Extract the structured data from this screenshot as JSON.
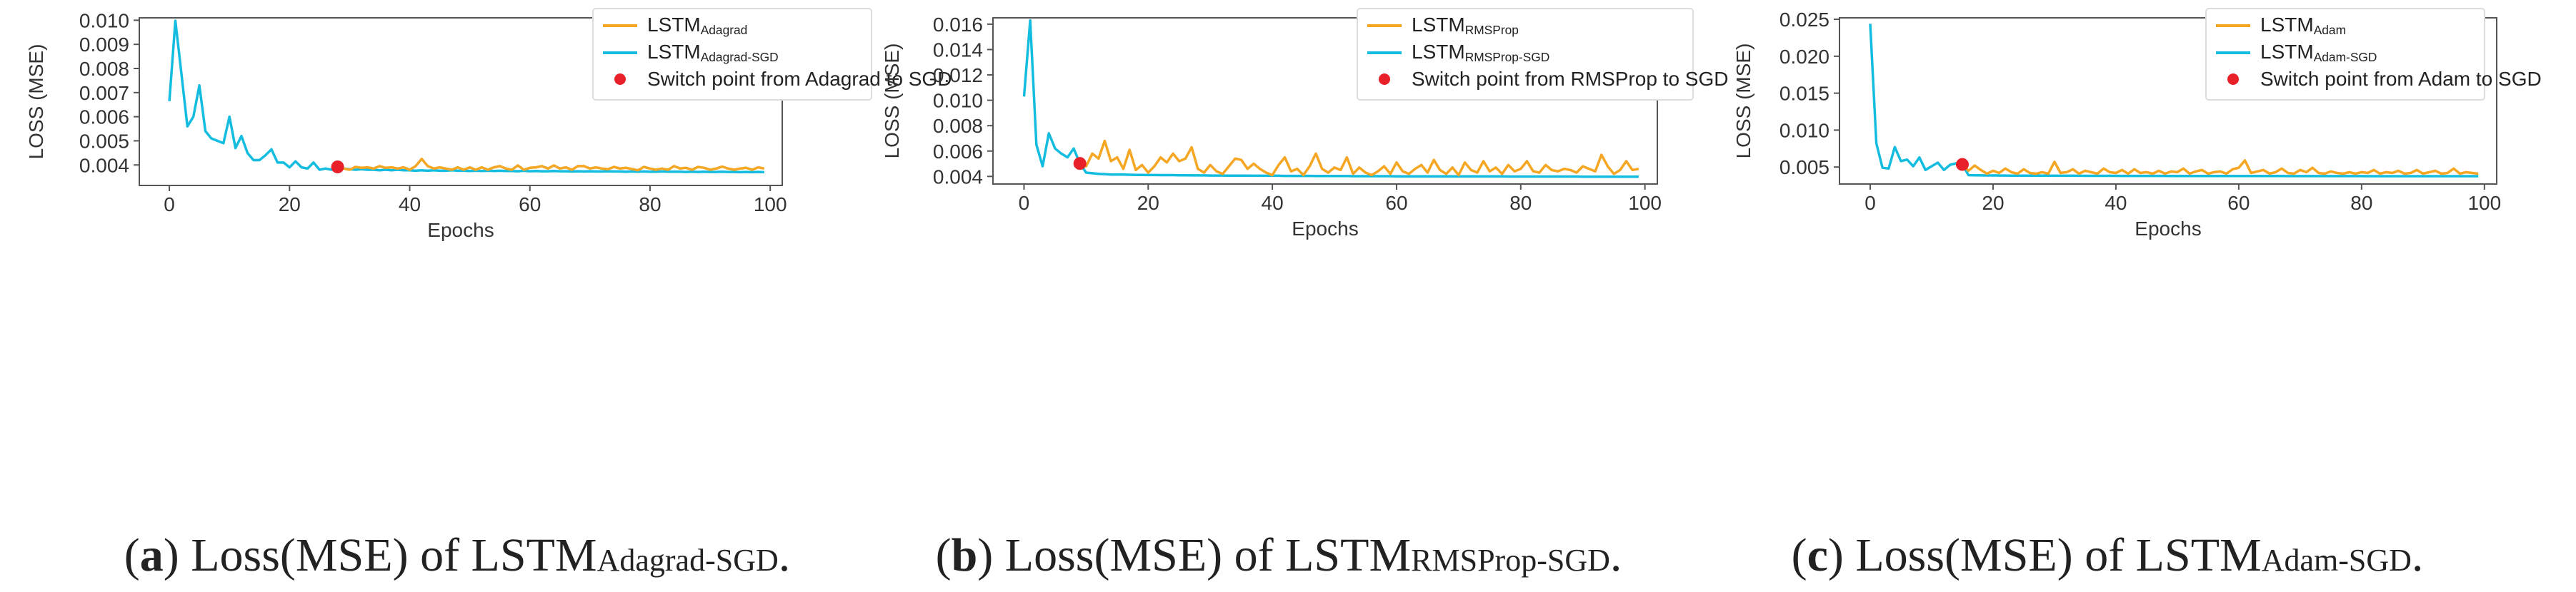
{
  "colors": {
    "orange": "#f5a623",
    "blue": "#14bde0",
    "switch": "#e8202a",
    "axis": "#555555",
    "text": "#333333"
  },
  "panels": [
    {
      "caption": {
        "letter": "a",
        "open": "(",
        "close": ")",
        "prefix": " Loss(MSE) of LSTM",
        "sub": "Adagrad-SGD",
        "end": "."
      },
      "chart_data": {
        "type": "line",
        "xlabel": "Epochs",
        "ylabel": "LOSS (MSE)",
        "xlim": [
          -5,
          102
        ],
        "ylim": [
          0.00315,
          0.0101
        ],
        "xticks": [
          0,
          20,
          40,
          60,
          80,
          100
        ],
        "xtick_labels": [
          "0",
          "20",
          "40",
          "60",
          "80",
          "100"
        ],
        "yticks": [
          0.004,
          0.005,
          0.006,
          0.007,
          0.008,
          0.009,
          0.01
        ],
        "ytick_labels": [
          "0.004",
          "0.005",
          "0.006",
          "0.007",
          "0.008",
          "0.009",
          "0.010"
        ],
        "legend": {
          "position": "top-right",
          "series_labels": [
            {
              "base": "LSTM",
              "sub": "Adagrad"
            },
            {
              "base": "LSTM",
              "sub": "Adagrad-SGD"
            }
          ],
          "switch_label": "Switch point from Adagrad to SGD"
        },
        "switch_point": {
          "x": 28,
          "y": 0.00392
        },
        "series": [
          {
            "name": "LSTM Adagrad",
            "color": "orange",
            "x_start": 28,
            "values": [
              0.00392,
              0.00385,
              0.0038,
              0.00392,
              0.00388,
              0.0039,
              0.00385,
              0.00395,
              0.00388,
              0.0039,
              0.00385,
              0.0039,
              0.0038,
              0.00395,
              0.00425,
              0.00395,
              0.00385,
              0.0039,
              0.00385,
              0.0038,
              0.0039,
              0.0038,
              0.0039,
              0.0038,
              0.0039,
              0.0038,
              0.0039,
              0.00395,
              0.00385,
              0.0038,
              0.00398,
              0.0038,
              0.00388,
              0.0039,
              0.00395,
              0.00385,
              0.00398,
              0.00385,
              0.0039,
              0.0038,
              0.00395,
              0.00395,
              0.00385,
              0.0039,
              0.00385,
              0.00382,
              0.00392,
              0.00385,
              0.00388,
              0.00383,
              0.00378,
              0.00392,
              0.00385,
              0.0038,
              0.00385,
              0.0038,
              0.00395,
              0.00385,
              0.00388,
              0.0038,
              0.00392,
              0.00388,
              0.0038,
              0.00385,
              0.00393,
              0.00385,
              0.0038,
              0.00385,
              0.00388,
              0.0038,
              0.0039,
              0.00385
            ]
          },
          {
            "name": "LSTM Adagrad-SGD",
            "color": "blue",
            "x_start": 0,
            "values": [
              0.00665,
              0.00998,
              0.0078,
              0.0056,
              0.006,
              0.0073,
              0.0054,
              0.0051,
              0.005,
              0.0049,
              0.006,
              0.0047,
              0.0052,
              0.0045,
              0.0042,
              0.0042,
              0.0044,
              0.00465,
              0.0041,
              0.0041,
              0.0039,
              0.00415,
              0.0039,
              0.00385,
              0.0041,
              0.0038,
              0.00385,
              0.0038,
              0.00392,
              0.00385,
              0.00382,
              0.0038,
              0.00382,
              0.0038,
              0.0038,
              0.00378,
              0.0038,
              0.00378,
              0.0038,
              0.00378,
              0.00378,
              0.00376,
              0.00378,
              0.00376,
              0.00378,
              0.00376,
              0.00376,
              0.00378,
              0.00376,
              0.00376,
              0.00375,
              0.00376,
              0.00375,
              0.00376,
              0.00375,
              0.00376,
              0.00375,
              0.00375,
              0.00374,
              0.00376,
              0.00374,
              0.00375,
              0.00374,
              0.00374,
              0.00375,
              0.00374,
              0.00374,
              0.00373,
              0.00374,
              0.00373,
              0.00374,
              0.00373,
              0.00373,
              0.00374,
              0.00373,
              0.00373,
              0.00372,
              0.00373,
              0.00372,
              0.00373,
              0.00372,
              0.00372,
              0.00373,
              0.00372,
              0.00372,
              0.00372,
              0.00371,
              0.00372,
              0.00371,
              0.00372,
              0.00371,
              0.00371,
              0.00372,
              0.00371,
              0.00371,
              0.0037,
              0.00371,
              0.0037,
              0.00371,
              0.0037
            ]
          }
        ]
      }
    },
    {
      "caption": {
        "letter": "b",
        "open": "(",
        "close": ")",
        "prefix": " Loss(MSE) of LSTM",
        "sub": "RMSProp-SGD",
        "end": "."
      },
      "chart_data": {
        "type": "line",
        "xlabel": "Epochs",
        "ylabel": "LOSS (MSE)",
        "xlim": [
          -5,
          102
        ],
        "ylim": [
          0.0034,
          0.0165
        ],
        "xticks": [
          0,
          20,
          40,
          60,
          80,
          100
        ],
        "xtick_labels": [
          "0",
          "20",
          "40",
          "60",
          "80",
          "100"
        ],
        "yticks": [
          0.004,
          0.006,
          0.008,
          0.01,
          0.012,
          0.014,
          0.016
        ],
        "ytick_labels": [
          "0.004",
          "0.006",
          "0.008",
          "0.010",
          "0.012",
          "0.014",
          "0.016"
        ],
        "legend": {
          "position": "top-right",
          "series_labels": [
            {
              "base": "LSTM",
              "sub": "RMSProp"
            },
            {
              "base": "LSTM",
              "sub": "RMSProp-SGD"
            }
          ],
          "switch_label": "Switch point from RMSProp to SGD"
        },
        "switch_point": {
          "x": 9,
          "y": 0.00502
        },
        "series": [
          {
            "name": "LSTM RMSProp",
            "color": "orange",
            "x_start": 9,
            "values": [
              0.00502,
              0.0048,
              0.0058,
              0.0054,
              0.0068,
              0.0052,
              0.0055,
              0.0046,
              0.0061,
              0.0045,
              0.0049,
              0.0043,
              0.0048,
              0.0055,
              0.0051,
              0.0058,
              0.0052,
              0.0054,
              0.0063,
              0.0046,
              0.0043,
              0.0049,
              0.0044,
              0.0042,
              0.0048,
              0.0054,
              0.0053,
              0.0046,
              0.005,
              0.0046,
              0.0043,
              0.0041,
              0.0049,
              0.0055,
              0.0044,
              0.0046,
              0.0041,
              0.0048,
              0.0058,
              0.0046,
              0.0043,
              0.0047,
              0.0045,
              0.0055,
              0.0042,
              0.0047,
              0.0043,
              0.0041,
              0.0044,
              0.0048,
              0.0042,
              0.0051,
              0.0044,
              0.0042,
              0.0046,
              0.0049,
              0.0043,
              0.0053,
              0.0045,
              0.0042,
              0.0047,
              0.0041,
              0.0051,
              0.0045,
              0.0043,
              0.0052,
              0.0044,
              0.0047,
              0.0042,
              0.0049,
              0.0044,
              0.0046,
              0.0052,
              0.0044,
              0.0043,
              0.0049,
              0.0045,
              0.0044,
              0.0046,
              0.0045,
              0.0043,
              0.0048,
              0.0046,
              0.0044,
              0.0057,
              0.0048,
              0.0042,
              0.0045,
              0.0052,
              0.0045,
              0.0046
            ]
          },
          {
            "name": "LSTM RMSProp-SGD",
            "color": "blue",
            "x_start": 0,
            "values": [
              0.0103,
              0.0163,
              0.0065,
              0.0048,
              0.0074,
              0.0062,
              0.0058,
              0.0055,
              0.0062,
              0.00502,
              0.0043,
              0.00425,
              0.0042,
              0.00418,
              0.00415,
              0.00415,
              0.00414,
              0.00413,
              0.00412,
              0.00412,
              0.00411,
              0.00411,
              0.0041,
              0.0041,
              0.0041,
              0.00409,
              0.00409,
              0.00408,
              0.00408,
              0.00408,
              0.00407,
              0.00407,
              0.00407,
              0.00406,
              0.00406,
              0.00406,
              0.00406,
              0.00405,
              0.00405,
              0.00405,
              0.00405,
              0.00405,
              0.00404,
              0.00404,
              0.00404,
              0.00404,
              0.00404,
              0.00403,
              0.00403,
              0.00403,
              0.00403,
              0.00403,
              0.00403,
              0.00402,
              0.00402,
              0.00402,
              0.00402,
              0.00402,
              0.00402,
              0.00402,
              0.00401,
              0.00401,
              0.00401,
              0.00401,
              0.00401,
              0.00401,
              0.00401,
              0.00401,
              0.004,
              0.004,
              0.004,
              0.004,
              0.004,
              0.004,
              0.004,
              0.004,
              0.004,
              0.004,
              0.00399,
              0.00399,
              0.00399,
              0.00399,
              0.00399,
              0.00399,
              0.00399,
              0.00399,
              0.00399,
              0.00399,
              0.00399,
              0.00399,
              0.00398,
              0.00398,
              0.00398,
              0.00398,
              0.00398,
              0.00398,
              0.00398,
              0.00398,
              0.00398,
              0.00398
            ]
          }
        ]
      }
    },
    {
      "caption": {
        "letter": "c",
        "open": "(",
        "close": ")",
        "prefix": " Loss(MSE) of LSTM",
        "sub": "Adam-SGD",
        "end": "."
      },
      "chart_data": {
        "type": "line",
        "xlabel": "Epochs",
        "ylabel": "LOSS (MSE)",
        "xlim": [
          -5,
          102
        ],
        "ylim": [
          0.0027,
          0.0252
        ],
        "xticks": [
          0,
          20,
          40,
          60,
          80,
          100
        ],
        "xtick_labels": [
          "0",
          "20",
          "40",
          "60",
          "80",
          "100"
        ],
        "yticks": [
          0.005,
          0.01,
          0.015,
          0.02,
          0.025
        ],
        "ytick_labels": [
          "0.005",
          "0.010",
          "0.015",
          "0.020",
          "0.025"
        ],
        "legend": {
          "position": "top-right",
          "series_labels": [
            {
              "base": "LSTM",
              "sub": "Adam"
            },
            {
              "base": "LSTM",
              "sub": "Adam-SGD"
            }
          ],
          "switch_label": "Switch point from Adam to SGD"
        },
        "switch_point": {
          "x": 15,
          "y": 0.00535
        },
        "series": [
          {
            "name": "LSTM Adam",
            "color": "orange",
            "x_start": 15,
            "values": [
              0.00535,
              0.0045,
              0.0052,
              0.0046,
              0.0041,
              0.0045,
              0.0042,
              0.0048,
              0.0043,
              0.0041,
              0.0047,
              0.0042,
              0.0041,
              0.0043,
              0.0041,
              0.0057,
              0.0042,
              0.0043,
              0.0047,
              0.0041,
              0.0045,
              0.0043,
              0.0041,
              0.0048,
              0.0043,
              0.0042,
              0.0046,
              0.0041,
              0.0047,
              0.0042,
              0.0043,
              0.0041,
              0.0045,
              0.0041,
              0.0044,
              0.0043,
              0.0048,
              0.0041,
              0.0044,
              0.0046,
              0.0041,
              0.0043,
              0.0044,
              0.0041,
              0.0047,
              0.0049,
              0.0059,
              0.0042,
              0.0044,
              0.0046,
              0.0041,
              0.0043,
              0.0048,
              0.0042,
              0.0041,
              0.0046,
              0.0043,
              0.0049,
              0.0042,
              0.0041,
              0.0044,
              0.0042,
              0.0041,
              0.0043,
              0.0041,
              0.0043,
              0.0042,
              0.0046,
              0.0041,
              0.0043,
              0.0042,
              0.0045,
              0.0041,
              0.0042,
              0.0046,
              0.0041,
              0.0043,
              0.0045,
              0.0041,
              0.0042,
              0.0048,
              0.0041,
              0.0043,
              0.0042,
              0.0041
            ]
          },
          {
            "name": "LSTM Adam-SGD",
            "color": "blue",
            "x_start": 0,
            "values": [
              0.0244,
              0.0082,
              0.0049,
              0.0048,
              0.0077,
              0.0058,
              0.006,
              0.0051,
              0.0063,
              0.0046,
              0.0051,
              0.0056,
              0.0046,
              0.0053,
              0.0055,
              0.00535,
              0.0039,
              0.00388,
              0.00387,
              0.00386,
              0.00386,
              0.00385,
              0.00385,
              0.00384,
              0.00384,
              0.00384,
              0.00383,
              0.00383,
              0.00383,
              0.00383,
              0.00382,
              0.00382,
              0.00382,
              0.00382,
              0.00382,
              0.00381,
              0.00381,
              0.00381,
              0.00381,
              0.00381,
              0.00381,
              0.0038,
              0.0038,
              0.0038,
              0.0038,
              0.0038,
              0.0038,
              0.0038,
              0.0038,
              0.00379,
              0.00379,
              0.00379,
              0.00379,
              0.00379,
              0.00379,
              0.00379,
              0.00379,
              0.00379,
              0.00378,
              0.00378,
              0.00378,
              0.00378,
              0.00378,
              0.00378,
              0.00378,
              0.00378,
              0.00378,
              0.00378,
              0.00377,
              0.00377,
              0.00377,
              0.00377,
              0.00377,
              0.00377,
              0.00377,
              0.00377,
              0.00377,
              0.00377,
              0.00377,
              0.00377,
              0.00377,
              0.00376,
              0.00376,
              0.00376,
              0.00376,
              0.00376,
              0.00376,
              0.00376,
              0.00376,
              0.00376,
              0.00376,
              0.00376,
              0.00376,
              0.00376,
              0.00376,
              0.00376,
              0.00376,
              0.00376,
              0.00376,
              0.00376
            ]
          }
        ]
      }
    }
  ]
}
